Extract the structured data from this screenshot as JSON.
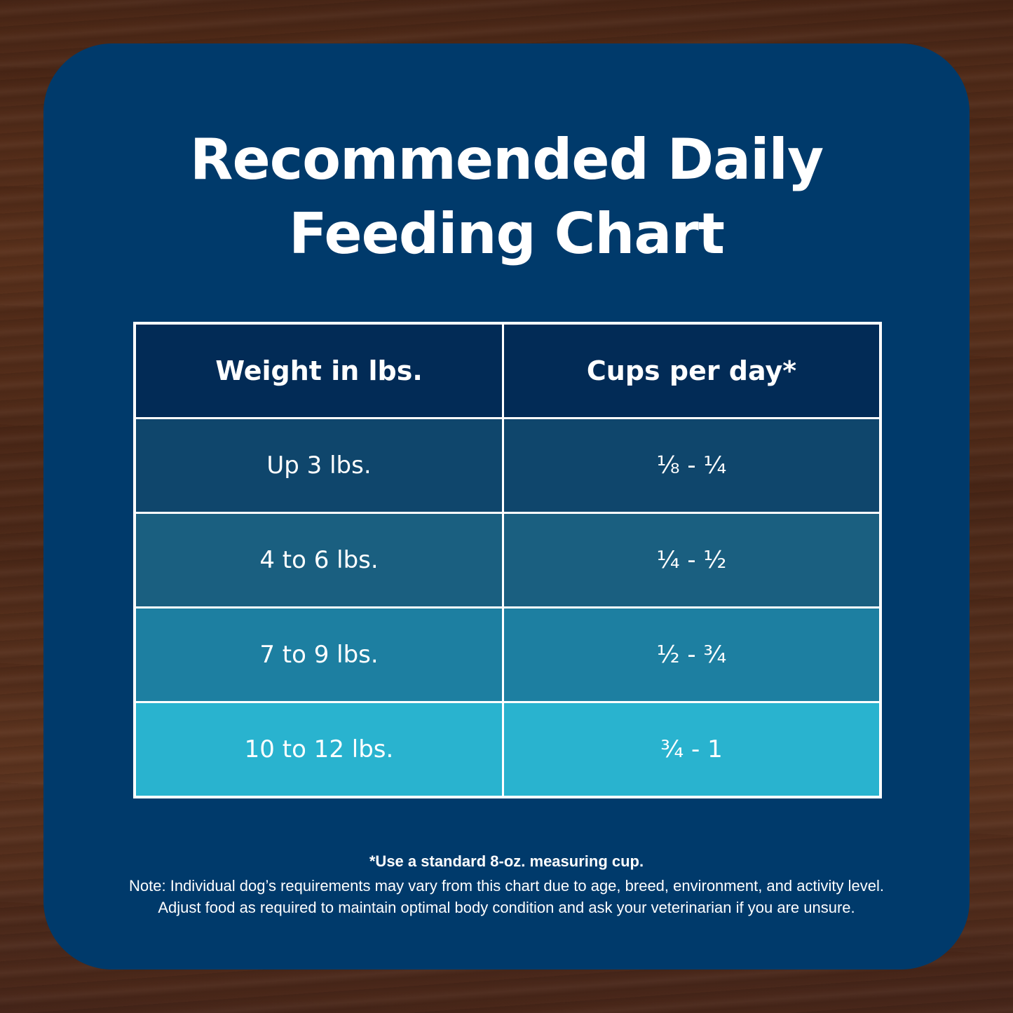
{
  "title": {
    "line1": "Recommended Daily",
    "line2": "Feeding Chart"
  },
  "table": {
    "headers": [
      "Weight in lbs.",
      "Cups per day*"
    ],
    "rows": [
      {
        "weight": "Up 3 lbs.",
        "cups": "⅛ - ¼"
      },
      {
        "weight": "4 to 6 lbs.",
        "cups": "¼ - ½"
      },
      {
        "weight": "7 to 9 lbs.",
        "cups": "½ - ¾"
      },
      {
        "weight": "10 to 12 lbs.",
        "cups": "¾ - 1"
      }
    ]
  },
  "footnote": {
    "measure": "*Use a standard 8-oz. measuring cup.",
    "note_line1": "Note: Individual dog’s requirements may vary from this chart due to age, breed, environment, and activity level.",
    "note_line2": "Adjust food as required to maintain optimal body condition and ask your veterinarian if you are unsure."
  },
  "colors": {
    "card": "#003a6b",
    "header_row": "#022b56",
    "row1": "#0f466c",
    "row2": "#1a5f80",
    "row3": "#1d7fa1",
    "row4": "#29b3cf",
    "border": "#ffffff"
  }
}
